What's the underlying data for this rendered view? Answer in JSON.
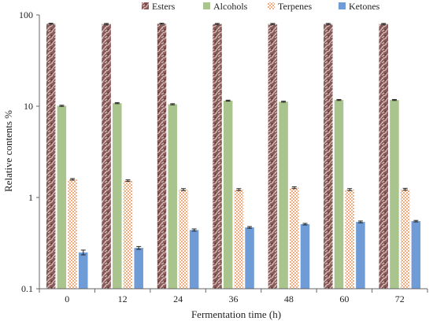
{
  "chart_data": {
    "type": "bar",
    "xlabel": "Fermentation time (h)",
    "ylabel": "Relative contents %",
    "yscale": "log",
    "ylim": [
      0.1,
      100
    ],
    "yticks": [
      "0.1",
      "1",
      "10",
      "100"
    ],
    "categories": [
      "0",
      "12",
      "24",
      "36",
      "48",
      "60",
      "72"
    ],
    "legend_position": "top",
    "grid": false,
    "series": [
      {
        "name": "Esters",
        "pattern": "marbled",
        "color": "#7a4a48",
        "values": [
          80,
          79.5,
          80,
          79.5,
          79.5,
          79.5,
          79.5
        ],
        "errors": [
          1.2,
          1.2,
          1.2,
          1.2,
          1.2,
          1.2,
          1.2
        ]
      },
      {
        "name": "Alcohols",
        "pattern": "solid",
        "color": "#a9c48c",
        "values": [
          10.1,
          10.8,
          10.5,
          11.5,
          11.2,
          11.7,
          11.7
        ],
        "errors": [
          0.15,
          0.15,
          0.15,
          0.15,
          0.15,
          0.15,
          0.15
        ]
      },
      {
        "name": "Terpenes",
        "pattern": "checkered",
        "color": "#f3b48a",
        "values": [
          1.58,
          1.53,
          1.22,
          1.22,
          1.28,
          1.22,
          1.23
        ],
        "errors": [
          0.03,
          0.03,
          0.03,
          0.03,
          0.03,
          0.03,
          0.03
        ]
      },
      {
        "name": "Ketones",
        "pattern": "solid",
        "color": "#6f9bd6",
        "values": [
          0.25,
          0.28,
          0.44,
          0.47,
          0.51,
          0.54,
          0.55
        ],
        "errors": [
          0.015,
          0.01,
          0.012,
          0.01,
          0.01,
          0.012,
          0.01
        ]
      }
    ]
  }
}
